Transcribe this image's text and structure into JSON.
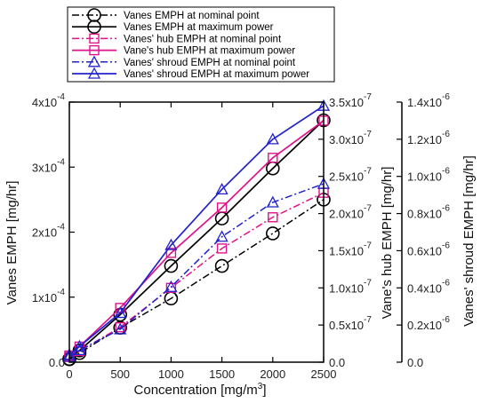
{
  "chart_data": {
    "type": "line",
    "x": [
      0,
      100,
      500,
      1000,
      1500,
      2000,
      2500
    ],
    "xlabel": "Concentration [mg/m",
    "xlabel_sup": "3",
    "xlabel_end": "]",
    "xlim": [
      0,
      2500
    ],
    "x_ticks": [
      "0",
      "500",
      "1000",
      "1500",
      "2000",
      "2500"
    ],
    "axes": [
      {
        "id": "left",
        "label": "Vanes EMPH [mg/hr]",
        "lim": [
          0,
          0.0004
        ],
        "ticks": [
          {
            "base": "0.0",
            "exp": ""
          },
          {
            "base": "1x10",
            "exp": "-4"
          },
          {
            "base": "2x10",
            "exp": "-4"
          },
          {
            "base": "3x10",
            "exp": "-4"
          },
          {
            "base": "4x10",
            "exp": "-4"
          }
        ]
      },
      {
        "id": "mid",
        "label": "Vane's hub EMPH [mg/hr]",
        "lim": [
          0,
          3.5e-07
        ],
        "ticks": [
          {
            "base": "0.0",
            "exp": ""
          },
          {
            "base": "0.5x10",
            "exp": "-7"
          },
          {
            "base": "1.0x10",
            "exp": "-7"
          },
          {
            "base": "1.5x10",
            "exp": "-7"
          },
          {
            "base": "2.0x10",
            "exp": "-7"
          },
          {
            "base": "2.5x10",
            "exp": "-7"
          },
          {
            "base": "3.0x10",
            "exp": "-7"
          },
          {
            "base": "3.5x10",
            "exp": "-7"
          }
        ]
      },
      {
        "id": "right",
        "label": "Vanes' shroud EMPH [mg/hr]",
        "lim": [
          0,
          1.4e-06
        ],
        "ticks": [
          {
            "base": "0.0",
            "exp": ""
          },
          {
            "base": "0.2x10",
            "exp": "-6"
          },
          {
            "base": "0.4x10",
            "exp": "-6"
          },
          {
            "base": "0.6x10",
            "exp": "-6"
          },
          {
            "base": "0.8x10",
            "exp": "-6"
          },
          {
            "base": "1.0x10",
            "exp": "-6"
          },
          {
            "base": "1.2x10",
            "exp": "-6"
          },
          {
            "base": "1.4x10",
            "exp": "-6"
          }
        ]
      }
    ],
    "series": [
      {
        "name": "Vanes EMPH at nominal point",
        "axis": "left",
        "color": "#000000",
        "dash": "dashdot",
        "marker": "circle",
        "values": [
          4.5e-06,
          1.4e-05,
          5.3e-05,
          9.8e-05,
          0.000148,
          0.000198,
          0.00025
        ]
      },
      {
        "name": "Vanes EMPH at maximum power",
        "axis": "left",
        "color": "#000000",
        "dash": "solid",
        "marker": "circle",
        "values": [
          5e-06,
          1.8e-05,
          7.3e-05,
          0.000148,
          0.000221,
          0.000298,
          0.000372
        ]
      },
      {
        "name": "Vanes' hub EMPH at nominal point",
        "axis": "mid",
        "color": "#e0128a",
        "dash": "dashdot",
        "marker": "square",
        "values": [
          7e-09,
          1.5e-08,
          4.7e-08,
          1e-07,
          1.53e-07,
          1.95e-07,
          2.28e-07
        ]
      },
      {
        "name": "Vane's hub EMPH at maximum power",
        "axis": "mid",
        "color": "#e0128a",
        "dash": "solid",
        "marker": "square",
        "values": [
          9e-09,
          2.1e-08,
          7.3e-08,
          1.47e-07,
          2.08e-07,
          2.75e-07,
          3.25e-07
        ]
      },
      {
        "name": "Vanes' shroud EMPH at nominal point",
        "axis": "right",
        "color": "#2222cc",
        "dash": "dashdot",
        "marker": "triangle",
        "values": [
          3e-08,
          6.5e-08,
          1.77e-07,
          4.05e-07,
          6.75e-07,
          8.6e-07,
          9.6e-07
        ]
      },
      {
        "name": "Vanes' shroud EMPH at maximum power",
        "axis": "right",
        "color": "#2222cc",
        "dash": "solid",
        "marker": "triangle",
        "values": [
          4e-08,
          8.5e-08,
          2.65e-07,
          6.3e-07,
          9.3e-07,
          1.2e-06,
          1.38e-06
        ]
      }
    ],
    "legend_position": "top",
    "grid": false
  }
}
